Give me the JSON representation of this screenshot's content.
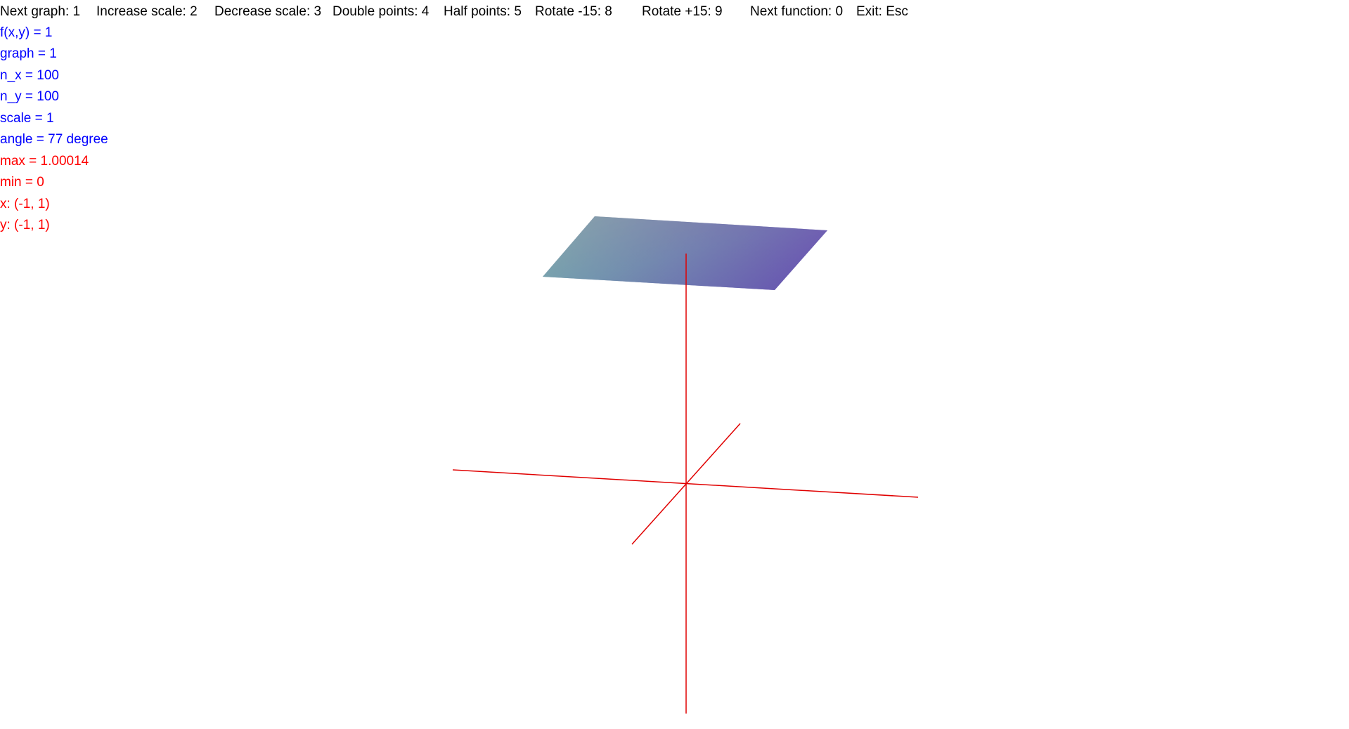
{
  "help": {
    "next_graph": "Next graph: 1",
    "increase_scale": "Increase scale: 2",
    "decrease_scale": "Decrease scale: 3",
    "double_points": "Double points: 4",
    "half_points": "Half points: 5",
    "rotate_minus": "Rotate -15: 8",
    "rotate_plus": "Rotate +15: 9",
    "next_function": "Next function: 0",
    "exit": "Exit: Esc"
  },
  "info": {
    "function": "f(x,y) = 1",
    "graph": "graph = 1",
    "n_x": "n_x = 100",
    "n_y": "n_y = 100",
    "scale": "scale = 1",
    "angle": "angle = 77 degree",
    "max": "max = 1.00014",
    "min": "min = 0",
    "x_range": "x: (-1, 1)",
    "y_range": "y: (-1, 1)"
  },
  "colors": {
    "params_text": "#0000ff",
    "range_text": "#ff0000",
    "help_text": "#000000",
    "axes": "#e00000",
    "surface_corners": [
      "#a8a4a8",
      "#9f54b8",
      "#4e48ae",
      "#4fb0b0"
    ]
  }
}
